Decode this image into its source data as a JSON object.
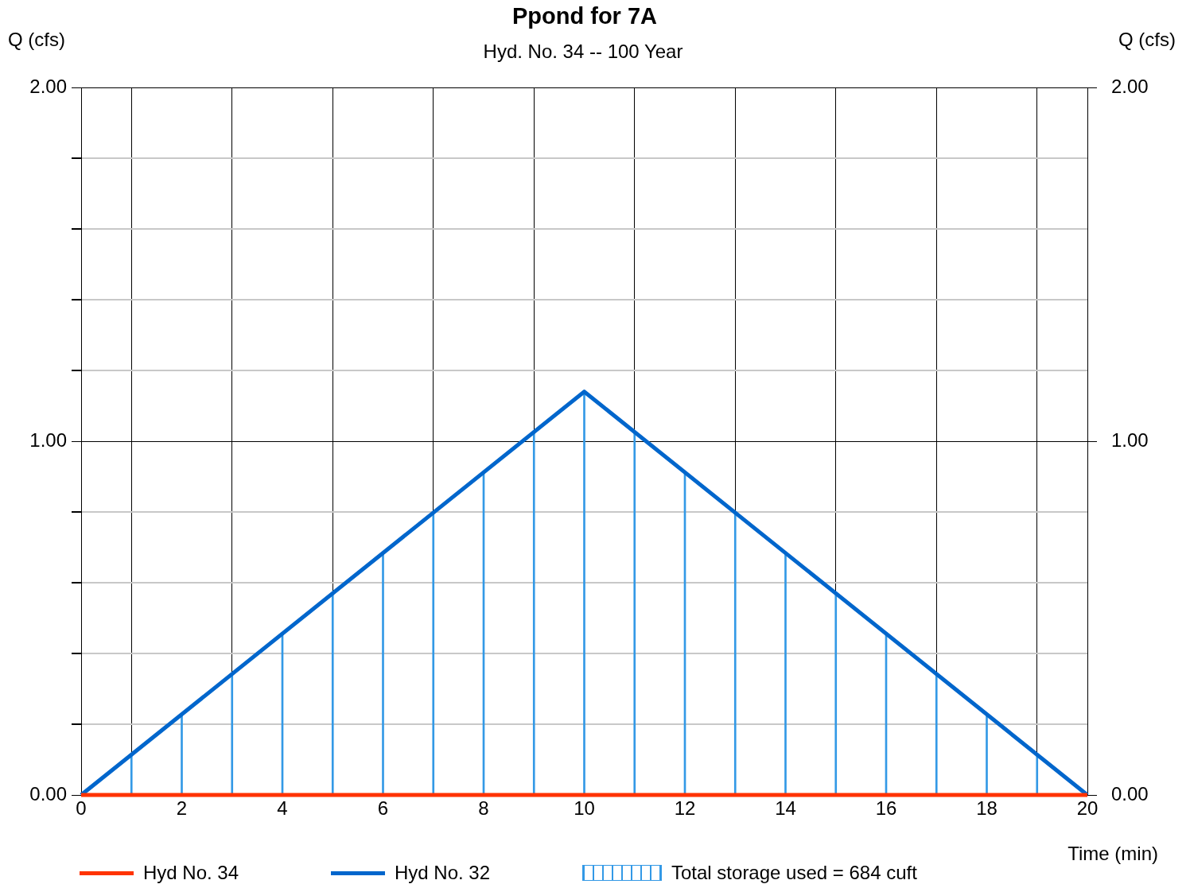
{
  "chart_data": {
    "type": "line",
    "title": "Ppond for 7A",
    "subtitle": "Hyd. No. 34 -- 100 Year",
    "xlabel": "Time (min)",
    "ylabel": "Q (cfs)",
    "y2label": "Q (cfs)",
    "xlim": [
      0,
      20
    ],
    "xticks": [
      0,
      2,
      4,
      6,
      8,
      10,
      12,
      14,
      16,
      18,
      20
    ],
    "ylim": [
      0,
      2
    ],
    "yticks": [
      {
        "value": 0,
        "label": "0.00"
      },
      {
        "value": 0.2,
        "label": null
      },
      {
        "value": 0.4,
        "label": null
      },
      {
        "value": 0.6,
        "label": null
      },
      {
        "value": 0.8,
        "label": null
      },
      {
        "value": 1,
        "label": "1.00"
      },
      {
        "value": 1.2,
        "label": null
      },
      {
        "value": 1.4,
        "label": null
      },
      {
        "value": 1.6,
        "label": null
      },
      {
        "value": 1.8,
        "label": null
      },
      {
        "value": 2,
        "label": "2.00"
      }
    ],
    "y2lim": [
      0,
      2
    ],
    "y2ticks": [
      {
        "value": 0,
        "label": "0.00"
      },
      {
        "value": 1,
        "label": "1.00"
      },
      {
        "value": 2,
        "label": "2.00"
      }
    ],
    "grid": true,
    "legend": "bottom",
    "marker": "none",
    "series": [
      {
        "name": "Hyd No. 34",
        "color": "#ff3300",
        "x": [
          0,
          20
        ],
        "values": [
          0,
          0
        ]
      },
      {
        "name": "Hyd No. 32",
        "color": "#0066cc",
        "x": [
          0,
          10,
          20
        ],
        "values": [
          0,
          1.14,
          0
        ]
      },
      {
        "name": "Total storage used = 684 cuft",
        "type": "bar",
        "color": "#3399e6",
        "x": [
          1,
          2,
          3,
          4,
          5,
          6,
          7,
          8,
          9,
          10,
          11,
          12,
          13,
          14,
          15,
          16,
          17,
          18,
          19
        ],
        "values": [
          0.11,
          0.23,
          0.34,
          0.46,
          0.57,
          0.68,
          0.8,
          0.91,
          1.03,
          1.14,
          1.03,
          0.91,
          0.8,
          0.68,
          0.57,
          0.46,
          0.34,
          0.23,
          0.11
        ]
      }
    ]
  }
}
